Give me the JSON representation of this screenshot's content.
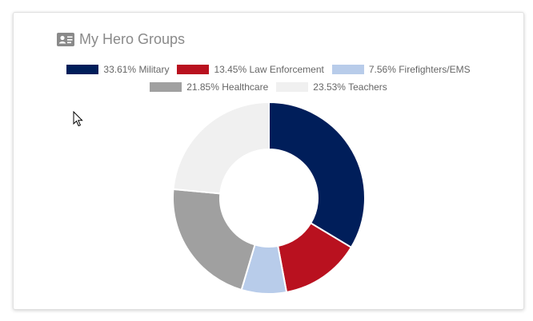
{
  "card": {
    "title": "My Hero Groups",
    "icon": "id-card-icon"
  },
  "chart_data": {
    "type": "pie",
    "variant": "doughnut",
    "legend_position": "top",
    "categories": [
      "Military",
      "Law Enforcement",
      "Firefighters/EMS",
      "Healthcare",
      "Teachers"
    ],
    "values": [
      33.61,
      13.45,
      7.56,
      21.85,
      23.53
    ],
    "colors": [
      "#001e5a",
      "#b9111f",
      "#b8ccea",
      "#a0a0a0",
      "#f0f0f0"
    ],
    "legend_labels": [
      "33.61% Military",
      "13.45% Law Enforcement",
      "7.56% Firefighters/EMS",
      "21.85% Healthcare",
      "23.53% Teachers"
    ]
  }
}
